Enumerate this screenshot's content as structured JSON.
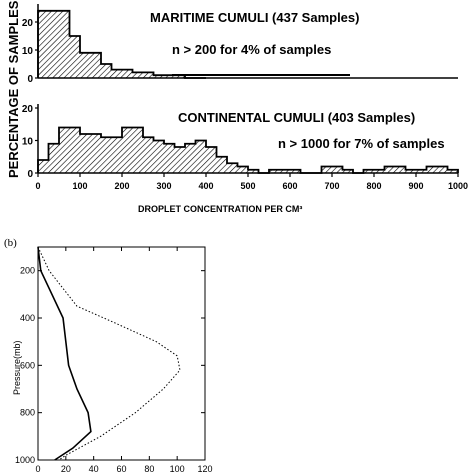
{
  "figure": {
    "panel_b_label": "(b)"
  },
  "chart_data": [
    {
      "type": "bar",
      "panel": "top-upper",
      "title": "MARITIME CUMULI (437 Samples)",
      "note": "n > 200 for 4% of samples",
      "ylabel": "PERCENTAGE OF SAMPLES",
      "bin_width": 25,
      "x_start": 0,
      "values": [
        24,
        24,
        24,
        15,
        9,
        9,
        5,
        3,
        3,
        2,
        2,
        1,
        1,
        1,
        0,
        0
      ],
      "xlim": [
        0,
        1000
      ],
      "ylim": [
        0,
        25
      ],
      "yticks": [
        "0",
        "10",
        "20"
      ],
      "hatched": true
    },
    {
      "type": "bar",
      "panel": "top-lower",
      "title": "CONTINENTAL CUMULI (403 Samples)",
      "note": "n > 1000 for 7% of samples",
      "xlabel": "DROPLET CONCENTRATION PER CM³",
      "bin_width": 25,
      "x_start": 0,
      "values": [
        4,
        9,
        14,
        14,
        12,
        12,
        11,
        11,
        14,
        14,
        11,
        10,
        9,
        8,
        9,
        10,
        8,
        5,
        3,
        2,
        1,
        0,
        1,
        1,
        1,
        0,
        0,
        2,
        2,
        1,
        0,
        1,
        1,
        2,
        2,
        1,
        1,
        2,
        2,
        1
      ],
      "xlim": [
        0,
        1000
      ],
      "ylim": [
        0,
        20
      ],
      "yticks": [
        "0",
        "10",
        "20"
      ],
      "xticks": [
        "0",
        "100",
        "200",
        "300",
        "400",
        "500",
        "600",
        "700",
        "800",
        "900",
        "1000"
      ],
      "hatched": true
    },
    {
      "type": "line",
      "panel": "b",
      "ylabel": "Pressure(mb)",
      "xlim": [
        0,
        120
      ],
      "ylim": [
        1000,
        100
      ],
      "xticks": [
        "0",
        "20",
        "40",
        "60",
        "80",
        "100",
        "120"
      ],
      "yticks": [
        "200",
        "400",
        "600",
        "800",
        "1000"
      ],
      "series": [
        {
          "style": "solid",
          "points": [
            [
              0,
              100
            ],
            [
              2,
              200
            ],
            [
              10,
              300
            ],
            [
              18,
              400
            ],
            [
              20,
              500
            ],
            [
              22,
              600
            ],
            [
              28,
              700
            ],
            [
              36,
              800
            ],
            [
              38,
              880
            ],
            [
              25,
              950
            ],
            [
              12,
              1000
            ]
          ]
        },
        {
          "style": "dotted",
          "points": [
            [
              0,
              100
            ],
            [
              8,
              200
            ],
            [
              28,
              350
            ],
            [
              55,
              420
            ],
            [
              85,
              500
            ],
            [
              100,
              560
            ],
            [
              102,
              620
            ],
            [
              90,
              700
            ],
            [
              70,
              800
            ],
            [
              45,
              900
            ],
            [
              20,
              980
            ],
            [
              15,
              1000
            ]
          ]
        }
      ]
    }
  ]
}
